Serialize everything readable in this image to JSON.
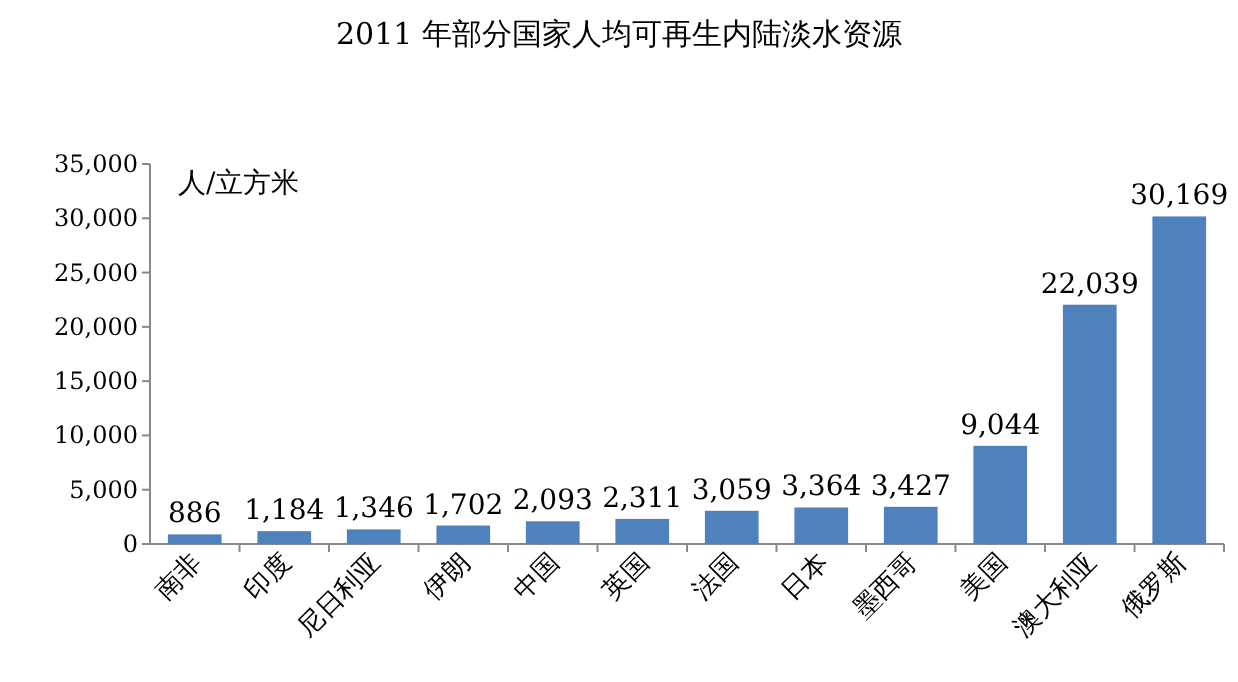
{
  "chart_data": {
    "type": "bar",
    "title": "2011 年部分国家人均可再生内陆淡水资源",
    "ylabel": "人/立方米",
    "categories": [
      "南非",
      "印度",
      "尼日利亚",
      "伊朗",
      "中国",
      "英国",
      "法国",
      "日本",
      "墨西哥",
      "美国",
      "澳大利亚",
      "俄罗斯"
    ],
    "values": [
      886,
      1184,
      1346,
      1702,
      2093,
      2311,
      3059,
      3364,
      3427,
      9044,
      22039,
      30169
    ],
    "value_labels": [
      "886",
      "1,184",
      "1,346",
      "1,702",
      "2,093",
      "2,311",
      "3,059",
      "3,364",
      "3,427",
      "9,044",
      "22,039",
      "30,169"
    ],
    "color": "#4f81bd",
    "ylim": [
      0,
      35000
    ],
    "yticks": [
      0,
      {
        "value": 5000,
        "label": "5,000"
      },
      {
        "value": 10000,
        "label": "10,000"
      },
      {
        "value": 15000,
        "label": "15,000"
      },
      {
        "value": 20000,
        "label": "20,000"
      },
      {
        "value": 25000,
        "label": "25,000"
      },
      {
        "value": 30000,
        "label": "30,000"
      },
      {
        "value": 35000,
        "label": "35,000"
      }
    ],
    "grid": false
  }
}
